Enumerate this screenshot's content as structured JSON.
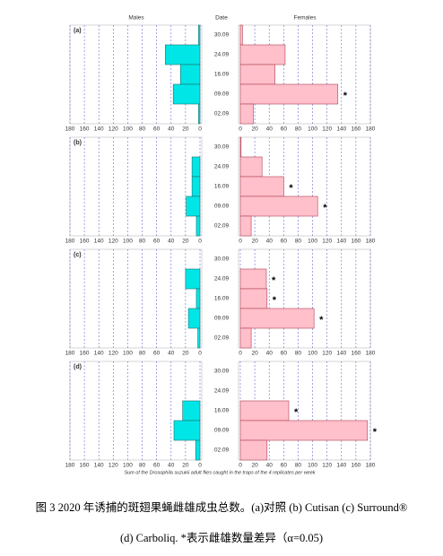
{
  "chart_data": [
    {
      "type": "pyramid",
      "label": "(a)",
      "category_label": "Date",
      "categories": [
        "30.09",
        "24.09",
        "16.09",
        "09.09",
        "02.09"
      ],
      "series": [
        {
          "name": "Males",
          "color": "#00e6e6",
          "values": [
            2,
            48,
            27,
            37,
            2
          ]
        },
        {
          "name": "Females",
          "color": "#ffc0cb",
          "values": [
            3,
            62,
            48,
            135,
            18
          ]
        }
      ],
      "annotations": [
        {
          "category": "09.09",
          "text": "*"
        }
      ],
      "xlim": [
        0,
        180
      ],
      "xticks": [
        0,
        20,
        40,
        60,
        80,
        100,
        120,
        140,
        160,
        180
      ],
      "grid": true
    },
    {
      "type": "pyramid",
      "label": "(b)",
      "categories": [
        "30.09",
        "24.09",
        "16.09",
        "09.09",
        "02.09"
      ],
      "series": [
        {
          "color": "#00e6e6",
          "values": [
            0,
            11,
            11,
            19,
            5
          ]
        },
        {
          "color": "#ffc0cb",
          "values": [
            1,
            30,
            60,
            107,
            15
          ]
        }
      ],
      "annotations": [
        {
          "category": "16.09",
          "text": "*"
        },
        {
          "category": "09.09",
          "text": "*"
        }
      ],
      "xlim": [
        0,
        180
      ],
      "xticks": [
        0,
        20,
        40,
        60,
        80,
        100,
        120,
        140,
        160,
        180
      ],
      "grid": true
    },
    {
      "type": "pyramid",
      "label": "(c)",
      "categories": [
        "30.09",
        "24.09",
        "16.09",
        "09.09",
        "02.09"
      ],
      "series": [
        {
          "color": "#00e6e6",
          "values": [
            0,
            20,
            5,
            16,
            3
          ]
        },
        {
          "color": "#ffc0cb",
          "values": [
            0,
            36,
            37,
            102,
            15
          ]
        }
      ],
      "annotations": [
        {
          "category": "24.09",
          "text": "*"
        },
        {
          "category": "16.09",
          "text": "*"
        },
        {
          "category": "09.09",
          "text": "*"
        }
      ],
      "xlim": [
        0,
        180
      ],
      "xticks": [
        0,
        20,
        40,
        60,
        80,
        100,
        120,
        140,
        160,
        180
      ],
      "grid": true
    },
    {
      "type": "pyramid",
      "label": "(d)",
      "categories": [
        "30.09",
        "24.09",
        "16.09",
        "09.09",
        "02.09"
      ],
      "series": [
        {
          "color": "#00e6e6",
          "values": [
            0,
            0,
            24,
            36,
            6
          ]
        },
        {
          "color": "#ffc0cb",
          "values": [
            0,
            0,
            67,
            176,
            37
          ]
        }
      ],
      "annotations": [
        {
          "category": "16.09",
          "text": "*"
        },
        {
          "category": "09.09",
          "text": "*"
        }
      ],
      "xlim": [
        0,
        180
      ],
      "xticks": [
        0,
        20,
        40,
        60,
        80,
        100,
        120,
        140,
        160,
        180
      ],
      "grid": true
    }
  ],
  "footnote": "Sum of the Drosophila suzukii adult flies caught in the traps of the 4 replicates per week",
  "caption": [
    "图 3 2020 年诱捕的斑翅果蝇雌雄成虫总数。(a)对照  (b) Cutisan (c) Surround®",
    "(d) Carboliq. *表示雌雄数量差异（α=0.05)"
  ]
}
